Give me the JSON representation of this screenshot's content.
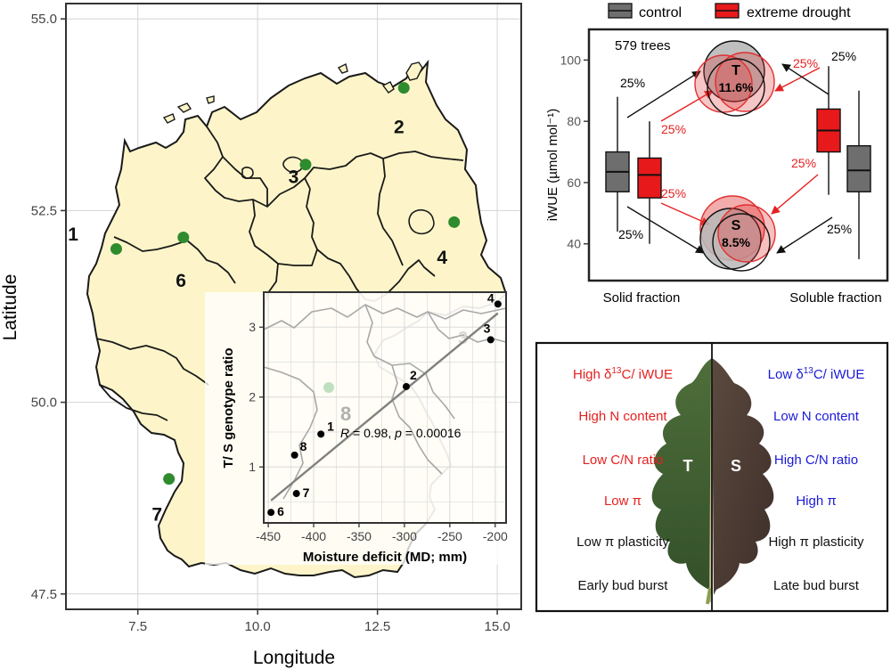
{
  "colors": {
    "land": "#fdf5c9",
    "border": "#1a1a1a",
    "site": "#2e8b2e",
    "grid": "#d4d4d4",
    "control": "#6e6e6e",
    "drought": "#e8191b",
    "red_text": "#e62020",
    "blue_text": "#1a1ad9",
    "circle_red": "#e03030",
    "circle_grey": "#b8b8b8"
  },
  "chart_data": [
    {
      "type": "scatter",
      "panel": "map",
      "xlabel": "Longitude",
      "ylabel": "Latitude",
      "xlim": [
        6.0,
        15.5
      ],
      "ylim": [
        47.3,
        55.2
      ],
      "x_ticks": [
        "7.5",
        "10.0",
        "12.5",
        "15.0"
      ],
      "x_tick_values": [
        7.5,
        10.0,
        12.5,
        15.0
      ],
      "y_ticks": [
        "47.5",
        "50.0",
        "52.5",
        "55.0"
      ],
      "y_tick_values": [
        47.5,
        50.0,
        52.5,
        55.0
      ],
      "grid": true,
      "sites": [
        {
          "label": "1",
          "lon": 7.05,
          "lat": 52.0,
          "label_lon": 6.15,
          "label_lat": 52.2
        },
        {
          "label": "6",
          "lon": 8.45,
          "lat": 52.15,
          "label_lon": 8.4,
          "label_lat": 51.6
        },
        {
          "label": "3",
          "lon": 11.0,
          "lat": 53.1,
          "label_lon": 10.75,
          "label_lat": 52.95
        },
        {
          "label": "2",
          "lon": 13.05,
          "lat": 54.1,
          "label_lon": 12.95,
          "label_lat": 53.6
        },
        {
          "label": "4",
          "lon": 14.1,
          "lat": 52.35,
          "label_lon": 13.85,
          "label_lat": 51.9
        },
        {
          "label": "7",
          "lon": 8.15,
          "lat": 49.0,
          "label_lon": 7.9,
          "label_lat": 48.55
        }
      ]
    },
    {
      "type": "scatter",
      "panel": "inset",
      "xlabel": "Moisture deficit (MD; mm)",
      "ylabel": "T/ S genotype ratio",
      "xlim": [
        -455,
        -188
      ],
      "ylim": [
        0.2,
        3.5
      ],
      "x_ticks": [
        "-450",
        "-400",
        "-350",
        "-300",
        "-250",
        "-200"
      ],
      "x_tick_values": [
        -450,
        -400,
        -350,
        -300,
        -250,
        -200
      ],
      "y_ticks": [
        "1",
        "2",
        "3"
      ],
      "y_tick_values": [
        1,
        2,
        3
      ],
      "points": [
        {
          "label": "6",
          "x": -447,
          "y": 0.35
        },
        {
          "label": "7",
          "x": -419,
          "y": 0.62
        },
        {
          "label": "8",
          "x": -421,
          "y": 1.17
        },
        {
          "label": "1",
          "x": -392,
          "y": 1.47
        },
        {
          "label": "2",
          "x": -298,
          "y": 2.15
        },
        {
          "label": "3",
          "x": -205,
          "y": 2.82
        },
        {
          "label": "4",
          "x": -197,
          "y": 3.33
        }
      ],
      "fit": {
        "x": [
          -447,
          -197
        ],
        "y": [
          0.52,
          3.2
        ]
      },
      "annotation": {
        "r": "R",
        "r_value": " = 0.98, ",
        "p": "p",
        "p_value": " = 0.00016"
      },
      "bg_label": "8",
      "bg_label_faint": "3"
    },
    {
      "type": "box",
      "panel": "iwue",
      "ylabel": "iWUE (µmol mol⁻¹)",
      "ylim": [
        28,
        110
      ],
      "y_ticks": [
        "40",
        "60",
        "80",
        "100"
      ],
      "y_tick_values": [
        40,
        60,
        80,
        100
      ],
      "categories": [
        "Solid fraction",
        "Soluble fraction"
      ],
      "series": [
        {
          "name": "control",
          "boxes": [
            {
              "category": "Solid fraction",
              "min": 44,
              "q1": 57,
              "median": 63.5,
              "q3": 70,
              "max": 88
            },
            {
              "category": "Soluble fraction",
              "min": 35,
              "q1": 57,
              "median": 64,
              "q3": 72,
              "max": 90
            }
          ]
        },
        {
          "name": "extreme drought",
          "boxes": [
            {
              "category": "Solid fraction",
              "min": 40,
              "q1": 55,
              "median": 62.5,
              "q3": 68,
              "max": 80
            },
            {
              "category": "Soluble fraction",
              "min": 56,
              "q1": 70,
              "median": 77,
              "q3": 84,
              "max": 98
            }
          ]
        }
      ],
      "trees_label": "579 trees",
      "T_label": "T",
      "T_pct": "11.6%",
      "S_label": "S",
      "S_pct": "8.5%",
      "pct_labels": [
        "25%",
        "25%",
        "25%",
        "25%",
        "25%",
        "25%",
        "25%",
        "25%"
      ]
    }
  ],
  "legend": {
    "items": [
      "control",
      "extreme drought"
    ]
  },
  "leaf": {
    "T": "T",
    "S": "S",
    "left": [
      {
        "pre": "High δ",
        "sup": "13",
        "post": "C/ iWUE",
        "color": "red"
      },
      {
        "pre": "High N content",
        "sup": "",
        "post": "",
        "color": "red"
      },
      {
        "pre": "Low C/N ratio",
        "sup": "",
        "post": "",
        "color": "red"
      },
      {
        "pre": "Low π",
        "sup": "",
        "post": "",
        "color": "red"
      },
      {
        "pre": "Low π plasticity",
        "sup": "",
        "post": "",
        "color": "black"
      },
      {
        "pre": "Early bud burst",
        "sup": "",
        "post": "",
        "color": "black"
      }
    ],
    "right": [
      {
        "pre": "Low δ",
        "sup": "13",
        "post": "C/ iWUE",
        "color": "blue"
      },
      {
        "pre": "Low N content",
        "sup": "",
        "post": "",
        "color": "blue"
      },
      {
        "pre": "High C/N ratio",
        "sup": "",
        "post": "",
        "color": "blue"
      },
      {
        "pre": "High π",
        "sup": "",
        "post": "",
        "color": "blue"
      },
      {
        "pre": "High π plasticity",
        "sup": "",
        "post": "",
        "color": "black"
      },
      {
        "pre": "Late bud burst",
        "sup": "",
        "post": "",
        "color": "black"
      }
    ]
  }
}
